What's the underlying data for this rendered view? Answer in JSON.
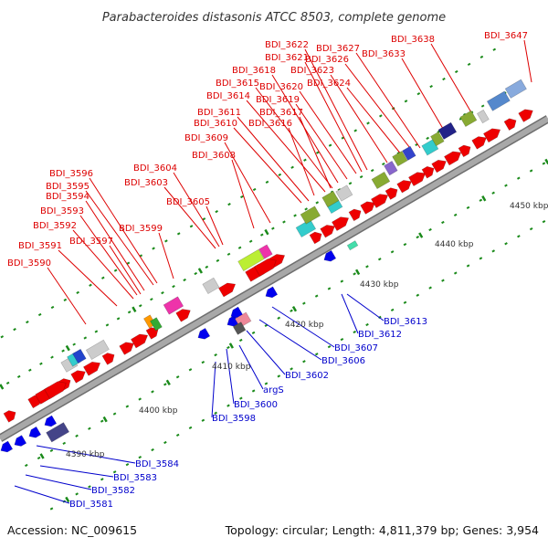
{
  "title": "Parabacteroides distasonis ATCC 8503, complete genome",
  "footer": {
    "accession": "Accession: NC_009615",
    "summary": "Topology: circular; Length: 4,811,379 bp; Genes: 3,954"
  },
  "colors": {
    "forward_label": "#dd0000",
    "reverse_label": "#0000cc",
    "backbone": "#a8a8a8",
    "forward_gene": "#ee0000",
    "reverse_gene": "#0000ee",
    "tick": "#1a8a1a"
  },
  "kbp_labels": [
    "4390 kbp",
    "4400 kbp",
    "4410 kbp",
    "4420 kbp",
    "4430 kbp",
    "4440 kbp",
    "4450 kbp"
  ],
  "forward_labels": [
    "BDI_3590",
    "BDI_3591",
    "BDI_3592",
    "BDI_3593",
    "BDI_3594",
    "BDI_3595",
    "BDI_3596",
    "BDI_3597",
    "BDI_3599",
    "BDI_3603",
    "BDI_3604",
    "BDI_3605",
    "BDI_3608",
    "BDI_3609",
    "BDI_3610",
    "BDI_3611",
    "BDI_3614",
    "BDI_3615",
    "BDI_3616",
    "BDI_3617",
    "BDI_3618",
    "BDI_3619",
    "BDI_3620",
    "BDI_3621",
    "BDI_3622",
    "BDI_3623",
    "BDI_3624",
    "BDI_3626",
    "BDI_3627",
    "BDI_3633",
    "BDI_3638",
    "BDI_3647"
  ],
  "reverse_labels": [
    "BDI_3613",
    "BDI_3612",
    "BDI_3607",
    "BDI_3606",
    "BDI_3602",
    "argS",
    "BDI_3600",
    "BDI_3598",
    "BDI_3584",
    "BDI_3583",
    "BDI_3582",
    "BDI_3581"
  ]
}
